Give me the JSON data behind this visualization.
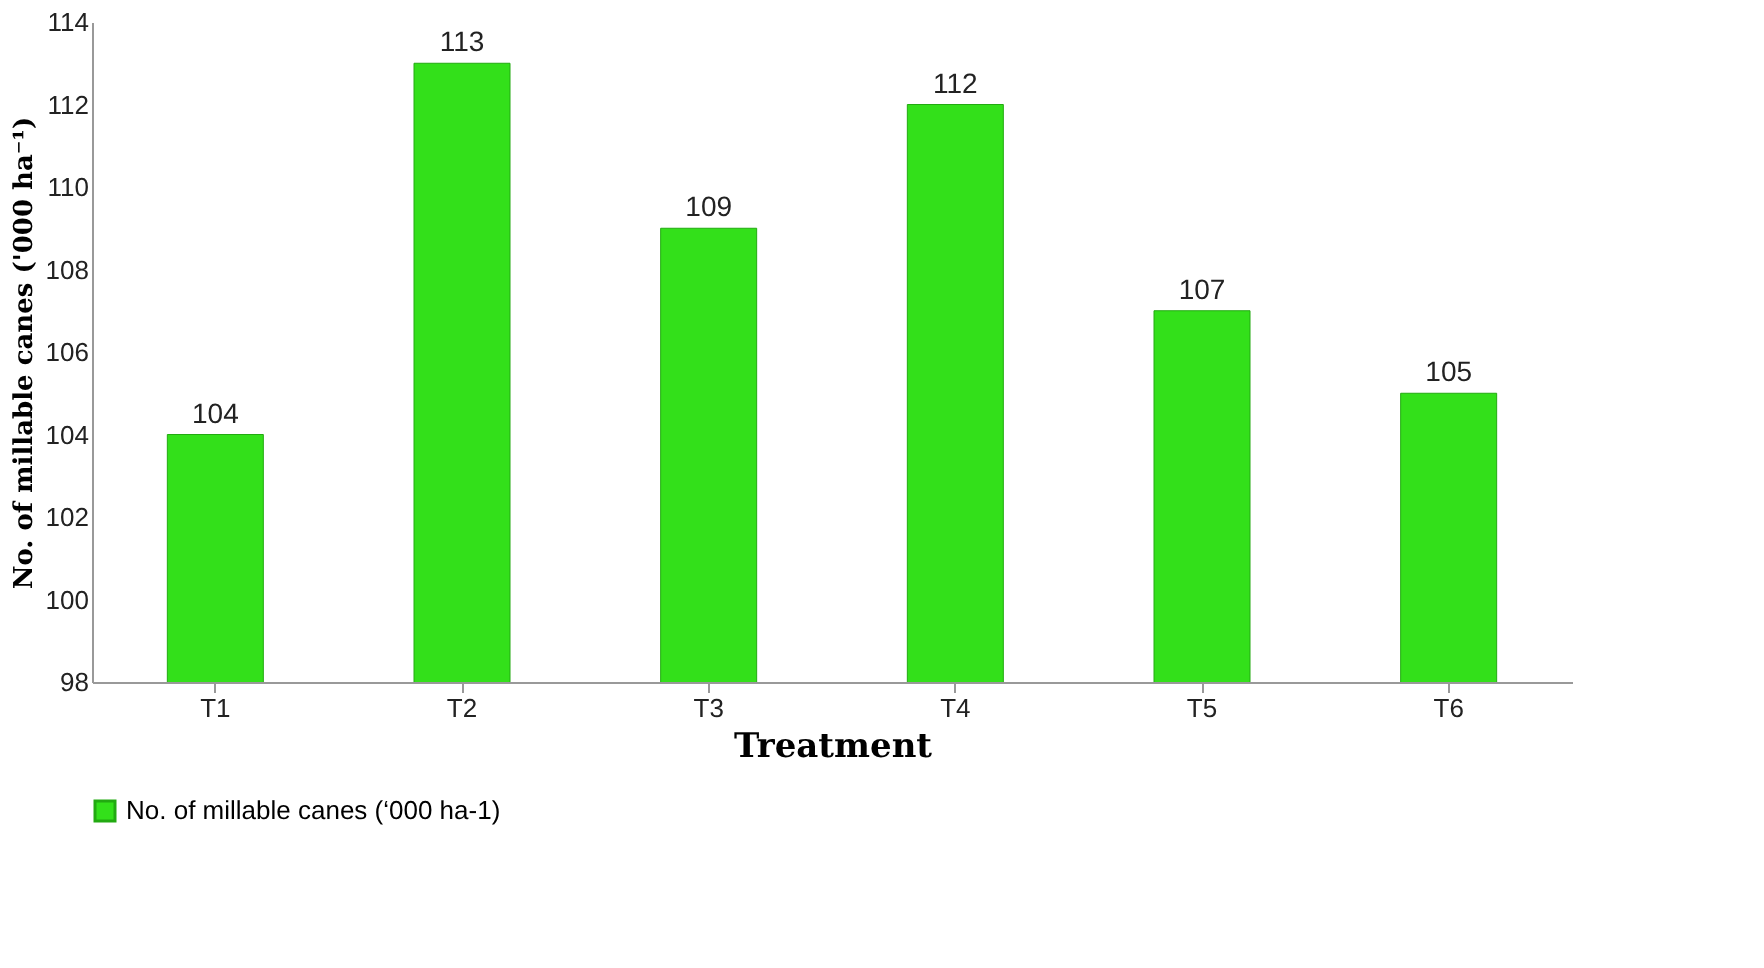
{
  "chart_data": {
    "type": "bar",
    "xlabel": "Treatment",
    "ylabel": "No. of millable canes ('000 ha⁻¹)",
    "categories": [
      "T1",
      "T2",
      "T3",
      "T4",
      "T5",
      "T6"
    ],
    "series": [
      {
        "name": "No. of millable canes (‘000 ha-1)",
        "color": "#33e01a",
        "values": [
          104,
          113,
          109,
          112,
          107,
          105
        ]
      }
    ],
    "ylim": [
      98,
      114
    ],
    "yticks": [
      98,
      100,
      102,
      104,
      106,
      108,
      110,
      112,
      114
    ],
    "data_labels": true,
    "grid": false,
    "legend": "bottom"
  }
}
